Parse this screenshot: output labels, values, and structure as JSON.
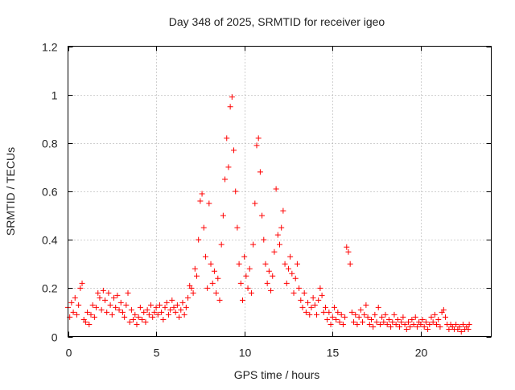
{
  "chart_data": {
    "type": "scatter",
    "title": "Day 348 of 2025, SRMTID for receiver igeo",
    "xlabel": "GPS time / hours",
    "ylabel": "SRMTID / TECUs",
    "xlim": [
      0,
      24
    ],
    "ylim": [
      0,
      1.2
    ],
    "xticks": [
      0,
      5,
      10,
      15,
      20
    ],
    "xtick_labels": [
      "0",
      "5",
      "10",
      "15",
      "20"
    ],
    "yticks": [
      0,
      0.2,
      0.4,
      0.6,
      0.8,
      1.0,
      1.2
    ],
    "ytick_labels": [
      "0",
      "0.2",
      "0.4",
      "0.6",
      "0.8",
      "1",
      "1.2"
    ],
    "grid": true,
    "marker": "+",
    "color": "#ff0000",
    "series": [
      {
        "name": "SRMTID",
        "points": [
          [
            0.0,
            0.12
          ],
          [
            0.1,
            0.08
          ],
          [
            0.2,
            0.14
          ],
          [
            0.3,
            0.1
          ],
          [
            0.4,
            0.16
          ],
          [
            0.5,
            0.09
          ],
          [
            0.6,
            0.13
          ],
          [
            0.7,
            0.2
          ],
          [
            0.8,
            0.22
          ],
          [
            0.9,
            0.07
          ],
          [
            1.0,
            0.06
          ],
          [
            1.1,
            0.1
          ],
          [
            1.2,
            0.05
          ],
          [
            1.3,
            0.09
          ],
          [
            1.4,
            0.13
          ],
          [
            1.5,
            0.08
          ],
          [
            1.6,
            0.12
          ],
          [
            1.7,
            0.18
          ],
          [
            1.8,
            0.16
          ],
          [
            1.9,
            0.11
          ],
          [
            2.0,
            0.19
          ],
          [
            2.1,
            0.15
          ],
          [
            2.2,
            0.1
          ],
          [
            2.3,
            0.18
          ],
          [
            2.4,
            0.13
          ],
          [
            2.5,
            0.09
          ],
          [
            2.6,
            0.16
          ],
          [
            2.7,
            0.12
          ],
          [
            2.8,
            0.17
          ],
          [
            2.9,
            0.11
          ],
          [
            3.0,
            0.14
          ],
          [
            3.1,
            0.1
          ],
          [
            3.2,
            0.08
          ],
          [
            3.3,
            0.13
          ],
          [
            3.4,
            0.18
          ],
          [
            3.5,
            0.06
          ],
          [
            3.6,
            0.11
          ],
          [
            3.7,
            0.07
          ],
          [
            3.8,
            0.09
          ],
          [
            3.9,
            0.05
          ],
          [
            4.0,
            0.08
          ],
          [
            4.1,
            0.12
          ],
          [
            4.2,
            0.07
          ],
          [
            4.3,
            0.1
          ],
          [
            4.4,
            0.06
          ],
          [
            4.5,
            0.11
          ],
          [
            4.6,
            0.09
          ],
          [
            4.7,
            0.13
          ],
          [
            4.8,
            0.08
          ],
          [
            4.9,
            0.1
          ],
          [
            5.0,
            0.12
          ],
          [
            5.1,
            0.09
          ],
          [
            5.2,
            0.13
          ],
          [
            5.3,
            0.1
          ],
          [
            5.4,
            0.07
          ],
          [
            5.5,
            0.12
          ],
          [
            5.6,
            0.14
          ],
          [
            5.7,
            0.09
          ],
          [
            5.8,
            0.11
          ],
          [
            5.9,
            0.15
          ],
          [
            6.0,
            0.12
          ],
          [
            6.1,
            0.1
          ],
          [
            6.2,
            0.13
          ],
          [
            6.3,
            0.08
          ],
          [
            6.4,
            0.11
          ],
          [
            6.5,
            0.14
          ],
          [
            6.6,
            0.09
          ],
          [
            6.7,
            0.12
          ],
          [
            6.8,
            0.16
          ],
          [
            6.9,
            0.21
          ],
          [
            7.0,
            0.2
          ],
          [
            7.1,
            0.18
          ],
          [
            7.2,
            0.28
          ],
          [
            7.3,
            0.25
          ],
          [
            7.4,
            0.4
          ],
          [
            7.5,
            0.56
          ],
          [
            7.6,
            0.59
          ],
          [
            7.7,
            0.45
          ],
          [
            7.8,
            0.33
          ],
          [
            7.9,
            0.2
          ],
          [
            8.0,
            0.55
          ],
          [
            8.1,
            0.3
          ],
          [
            8.2,
            0.22
          ],
          [
            8.3,
            0.27
          ],
          [
            8.4,
            0.18
          ],
          [
            8.5,
            0.24
          ],
          [
            8.6,
            0.15
          ],
          [
            8.7,
            0.38
          ],
          [
            8.8,
            0.5
          ],
          [
            8.9,
            0.65
          ],
          [
            9.0,
            0.82
          ],
          [
            9.1,
            0.7
          ],
          [
            9.2,
            0.95
          ],
          [
            9.3,
            0.99
          ],
          [
            9.4,
            0.77
          ],
          [
            9.5,
            0.6
          ],
          [
            9.6,
            0.45
          ],
          [
            9.7,
            0.3
          ],
          [
            9.8,
            0.22
          ],
          [
            9.9,
            0.15
          ],
          [
            10.0,
            0.33
          ],
          [
            10.1,
            0.25
          ],
          [
            10.2,
            0.2
          ],
          [
            10.3,
            0.28
          ],
          [
            10.4,
            0.18
          ],
          [
            10.5,
            0.38
          ],
          [
            10.6,
            0.55
          ],
          [
            10.7,
            0.79
          ],
          [
            10.8,
            0.82
          ],
          [
            10.9,
            0.68
          ],
          [
            11.0,
            0.5
          ],
          [
            11.1,
            0.4
          ],
          [
            11.2,
            0.3
          ],
          [
            11.3,
            0.22
          ],
          [
            11.4,
            0.27
          ],
          [
            11.5,
            0.19
          ],
          [
            11.6,
            0.25
          ],
          [
            11.7,
            0.35
          ],
          [
            11.8,
            0.61
          ],
          [
            11.9,
            0.42
          ],
          [
            12.0,
            0.38
          ],
          [
            12.1,
            0.45
          ],
          [
            12.2,
            0.52
          ],
          [
            12.3,
            0.3
          ],
          [
            12.4,
            0.22
          ],
          [
            12.5,
            0.28
          ],
          [
            12.6,
            0.33
          ],
          [
            12.7,
            0.26
          ],
          [
            12.8,
            0.18
          ],
          [
            12.9,
            0.24
          ],
          [
            13.0,
            0.3
          ],
          [
            13.1,
            0.2
          ],
          [
            13.2,
            0.15
          ],
          [
            13.3,
            0.12
          ],
          [
            13.4,
            0.18
          ],
          [
            13.5,
            0.1
          ],
          [
            13.6,
            0.14
          ],
          [
            13.7,
            0.09
          ],
          [
            13.8,
            0.12
          ],
          [
            13.9,
            0.16
          ],
          [
            14.0,
            0.13
          ],
          [
            14.1,
            0.09
          ],
          [
            14.2,
            0.15
          ],
          [
            14.3,
            0.2
          ],
          [
            14.4,
            0.17
          ],
          [
            14.5,
            0.1
          ],
          [
            14.6,
            0.12
          ],
          [
            14.7,
            0.07
          ],
          [
            14.8,
            0.1
          ],
          [
            14.9,
            0.05
          ],
          [
            15.0,
            0.08
          ],
          [
            15.1,
            0.12
          ],
          [
            15.2,
            0.07
          ],
          [
            15.3,
            0.1
          ],
          [
            15.4,
            0.06
          ],
          [
            15.5,
            0.09
          ],
          [
            15.6,
            0.05
          ],
          [
            15.7,
            0.08
          ],
          [
            15.8,
            0.37
          ],
          [
            15.9,
            0.35
          ],
          [
            16.0,
            0.3
          ],
          [
            16.1,
            0.1
          ],
          [
            16.2,
            0.06
          ],
          [
            16.3,
            0.09
          ],
          [
            16.4,
            0.05
          ],
          [
            16.5,
            0.08
          ],
          [
            16.6,
            0.11
          ],
          [
            16.7,
            0.06
          ],
          [
            16.8,
            0.09
          ],
          [
            16.9,
            0.13
          ],
          [
            17.0,
            0.08
          ],
          [
            17.1,
            0.05
          ],
          [
            17.2,
            0.07
          ],
          [
            17.3,
            0.04
          ],
          [
            17.4,
            0.09
          ],
          [
            17.5,
            0.06
          ],
          [
            17.6,
            0.12
          ],
          [
            17.7,
            0.05
          ],
          [
            17.8,
            0.08
          ],
          [
            17.9,
            0.06
          ],
          [
            18.0,
            0.09
          ],
          [
            18.1,
            0.05
          ],
          [
            18.2,
            0.07
          ],
          [
            18.3,
            0.04
          ],
          [
            18.4,
            0.06
          ],
          [
            18.5,
            0.09
          ],
          [
            18.6,
            0.05
          ],
          [
            18.7,
            0.07
          ],
          [
            18.8,
            0.04
          ],
          [
            18.9,
            0.06
          ],
          [
            19.0,
            0.08
          ],
          [
            19.1,
            0.05
          ],
          [
            19.2,
            0.03
          ],
          [
            19.3,
            0.06
          ],
          [
            19.4,
            0.04
          ],
          [
            19.5,
            0.07
          ],
          [
            19.6,
            0.05
          ],
          [
            19.7,
            0.08
          ],
          [
            19.8,
            0.04
          ],
          [
            19.9,
            0.06
          ],
          [
            20.0,
            0.05
          ],
          [
            20.1,
            0.07
          ],
          [
            20.2,
            0.04
          ],
          [
            20.3,
            0.06
          ],
          [
            20.4,
            0.03
          ],
          [
            20.5,
            0.05
          ],
          [
            20.6,
            0.08
          ],
          [
            20.7,
            0.06
          ],
          [
            20.8,
            0.09
          ],
          [
            20.9,
            0.05
          ],
          [
            21.0,
            0.07
          ],
          [
            21.1,
            0.04
          ],
          [
            21.2,
            0.1
          ],
          [
            21.3,
            0.11
          ],
          [
            21.4,
            0.08
          ],
          [
            21.5,
            0.05
          ],
          [
            21.6,
            0.03
          ],
          [
            21.7,
            0.05
          ],
          [
            21.8,
            0.04
          ],
          [
            21.9,
            0.03
          ],
          [
            22.0,
            0.05
          ],
          [
            22.1,
            0.03
          ],
          [
            22.2,
            0.04
          ],
          [
            22.3,
            0.02
          ],
          [
            22.4,
            0.05
          ],
          [
            22.5,
            0.03
          ],
          [
            22.6,
            0.04
          ],
          [
            22.7,
            0.03
          ],
          [
            22.75,
            0.05
          ]
        ]
      }
    ]
  }
}
